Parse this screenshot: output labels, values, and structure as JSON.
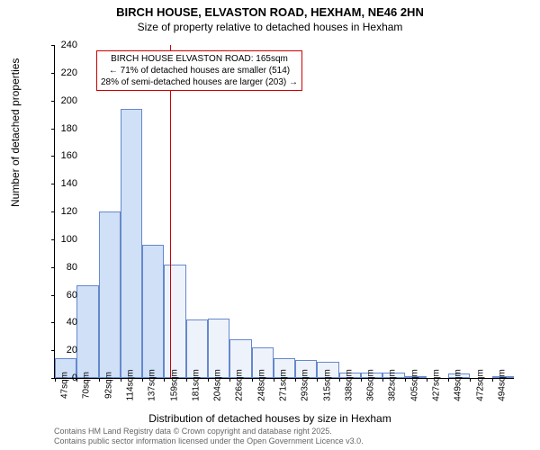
{
  "title_main": "BIRCH HOUSE, ELVASTON ROAD, HEXHAM, NE46 2HN",
  "title_sub": "Size of property relative to detached houses in Hexham",
  "y_axis_label": "Number of detached properties",
  "x_axis_label": "Distribution of detached houses by size in Hexham",
  "credit1": "Contains HM Land Registry data © Crown copyright and database right 2025.",
  "credit2": "Contains public sector information licensed under the Open Government Licence v3.0.",
  "chart": {
    "type": "histogram",
    "ylim": [
      0,
      240
    ],
    "ytick_step": 20,
    "y_ticks": [
      0,
      20,
      40,
      60,
      80,
      100,
      120,
      140,
      160,
      180,
      200,
      220,
      240
    ],
    "x_tick_labels_sqm": [
      47,
      70,
      92,
      114,
      137,
      159,
      181,
      204,
      226,
      248,
      271,
      293,
      315,
      338,
      360,
      382,
      405,
      427,
      449,
      472,
      494
    ],
    "bar_values": [
      14,
      67,
      120,
      194,
      96,
      82,
      42,
      43,
      28,
      22,
      14,
      13,
      12,
      4,
      4,
      4,
      1,
      0,
      3,
      0,
      1
    ],
    "bar_fill_left": "#cfe0f7",
    "bar_fill_right": "#eef3fb",
    "bar_border": "#6688cc",
    "marker_position_sqm": 165,
    "marker_color": "#cc0000",
    "annotation_line1": "BIRCH HOUSE ELVASTON ROAD: 165sqm",
    "annotation_line2": "← 71% of detached houses are smaller (514)",
    "annotation_line3": "28% of semi-detached houses are larger (203) →",
    "annotation_border": "#cc0000",
    "background_color": "#ffffff"
  }
}
